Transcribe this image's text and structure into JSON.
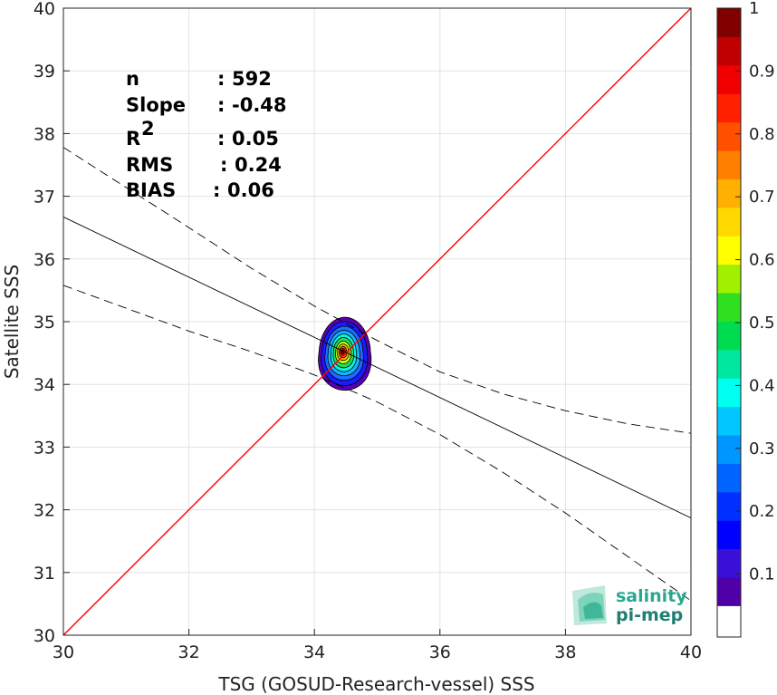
{
  "chart_data": {
    "type": "scatter",
    "xlabel": "TSG (GOSUD-Research-vessel) SSS",
    "ylabel": "Satellite SSS",
    "xlim": [
      30,
      40
    ],
    "ylim": [
      30,
      40
    ],
    "x_ticks": [
      "30",
      "32",
      "34",
      "36",
      "38",
      "40"
    ],
    "y_ticks": [
      "30",
      "31",
      "32",
      "33",
      "34",
      "35",
      "36",
      "37",
      "38",
      "39",
      "40"
    ],
    "grid": true,
    "stats": [
      {
        "label": "n",
        "sep": ":",
        "value": "592"
      },
      {
        "label": "Slope",
        "sep": ":",
        "value": "-0.48"
      },
      {
        "label": "R",
        "sup": "2",
        "sep": ":",
        "value": "0.05"
      },
      {
        "label": "RMS",
        "sep": ":",
        "value": "0.24"
      },
      {
        "label": "BIAS",
        "sep": ":",
        "value": "0.06"
      }
    ],
    "identity_line": {
      "color": "#ff0000",
      "from": [
        30,
        30
      ],
      "to": [
        40,
        40
      ]
    },
    "regression_line": {
      "color": "#000000",
      "from": [
        30,
        36.67
      ],
      "to": [
        40,
        31.87
      ]
    },
    "confidence_band": {
      "color": "#000000",
      "upper": [
        [
          30,
          37.78
        ],
        [
          32,
          36.5
        ],
        [
          33,
          35.85
        ],
        [
          34,
          35.25
        ],
        [
          35,
          34.7
        ],
        [
          36,
          34.2
        ],
        [
          37,
          33.85
        ],
        [
          38,
          33.58
        ],
        [
          39,
          33.37
        ],
        [
          40,
          33.22
        ]
      ],
      "lower": [
        [
          30,
          35.58
        ],
        [
          32,
          34.85
        ],
        [
          33,
          34.52
        ],
        [
          34,
          34.15
        ],
        [
          35,
          33.72
        ],
        [
          36,
          33.2
        ],
        [
          37,
          32.6
        ],
        [
          38,
          31.95
        ],
        [
          39,
          31.25
        ],
        [
          40,
          30.55
        ]
      ]
    },
    "density": {
      "center": [
        34.45,
        34.52
      ],
      "levels": [
        {
          "level": 0.0,
          "color": "#5a00b4",
          "rx": 0.41,
          "ry": 0.58
        },
        {
          "level": 0.1,
          "color": "#1a1aff",
          "rx": 0.36,
          "ry": 0.51
        },
        {
          "level": 0.2,
          "color": "#1e6bff",
          "rx": 0.3,
          "ry": 0.43
        },
        {
          "level": 0.3,
          "color": "#14b4ff",
          "rx": 0.25,
          "ry": 0.36
        },
        {
          "level": 0.4,
          "color": "#10f0e0",
          "rx": 0.2,
          "ry": 0.3
        },
        {
          "level": 0.5,
          "color": "#20e060",
          "rx": 0.16,
          "ry": 0.24
        },
        {
          "level": 0.6,
          "color": "#c8ff10",
          "rx": 0.12,
          "ry": 0.18
        },
        {
          "level": 0.7,
          "color": "#ffc000",
          "rx": 0.09,
          "ry": 0.13
        },
        {
          "level": 0.8,
          "color": "#ff6a00",
          "rx": 0.06,
          "ry": 0.09
        },
        {
          "level": 0.9,
          "color": "#ff1a1a",
          "rx": 0.04,
          "ry": 0.06
        },
        {
          "level": 1.0,
          "color": "#8b0000",
          "rx": 0.02,
          "ry": 0.035
        }
      ]
    },
    "colorbar": {
      "tick_labels": [
        "0.1",
        "0.2",
        "0.3",
        "0.4",
        "0.5",
        "0.6",
        "0.7",
        "0.8",
        "0.9",
        "1"
      ],
      "tick_values": [
        0.1,
        0.2,
        0.3,
        0.4,
        0.5,
        0.6,
        0.7,
        0.8,
        0.9,
        1.0
      ],
      "bottom_color": "#ffffff",
      "colors": [
        "#5000a8",
        "#3a10d8",
        "#0000ff",
        "#0030ff",
        "#0064ff",
        "#0096ff",
        "#00c8ff",
        "#00fff0",
        "#00e8a0",
        "#00dc50",
        "#30e020",
        "#a0f000",
        "#ffff00",
        "#ffd800",
        "#ffb000",
        "#ff8000",
        "#ff5000",
        "#ff2000",
        "#f00000",
        "#c00000",
        "#800000"
      ]
    }
  },
  "logo": {
    "line1": "salinity",
    "line2": "pi-mep",
    "colors": [
      "#2aa88f",
      "#1f7f73"
    ]
  }
}
